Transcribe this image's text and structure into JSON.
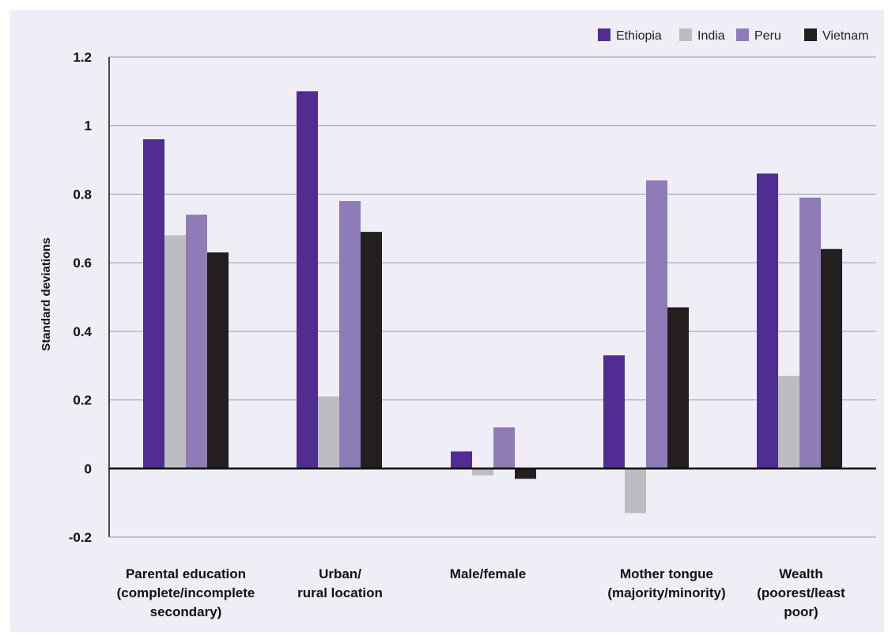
{
  "chart_data": {
    "type": "bar",
    "title": "",
    "xlabel": "",
    "ylabel": "Standard deviations",
    "ylim": [
      -0.2,
      1.2
    ],
    "yticks": [
      "1.2",
      "1",
      "0.8",
      "0.6",
      "0.4",
      "0.2",
      "0",
      "-0.2"
    ],
    "ytick_values": [
      1.2,
      1.0,
      0.8,
      0.6,
      0.4,
      0.2,
      0,
      -0.2
    ],
    "grid": true,
    "legend_position": "top-right",
    "categories": [
      [
        "Parental education",
        "(complete/incomplete",
        "secondary)"
      ],
      [
        "Urban/",
        "rural location"
      ],
      [
        "Male/female"
      ],
      [
        "Mother tongue",
        "(majority/minority)"
      ],
      [
        "Wealth",
        "(poorest/least",
        "poor)"
      ]
    ],
    "series": [
      {
        "name": "Ethiopia",
        "color": "#522d91",
        "values": [
          0.96,
          1.1,
          0.05,
          0.33,
          0.86
        ]
      },
      {
        "name": "India",
        "color": "#bcbdc0",
        "values": [
          0.68,
          0.21,
          -0.02,
          -0.13,
          0.27
        ]
      },
      {
        "name": "Peru",
        "color": "#8f7bb8",
        "values": [
          0.74,
          0.78,
          0.12,
          0.84,
          0.79
        ]
      },
      {
        "name": "Vietnam",
        "color": "#231f20",
        "values": [
          0.63,
          0.69,
          -0.03,
          0.47,
          0.64
        ]
      }
    ]
  },
  "style": {
    "background": "#efedf6",
    "gridline": "#9a98a6",
    "axis": "#111111"
  }
}
